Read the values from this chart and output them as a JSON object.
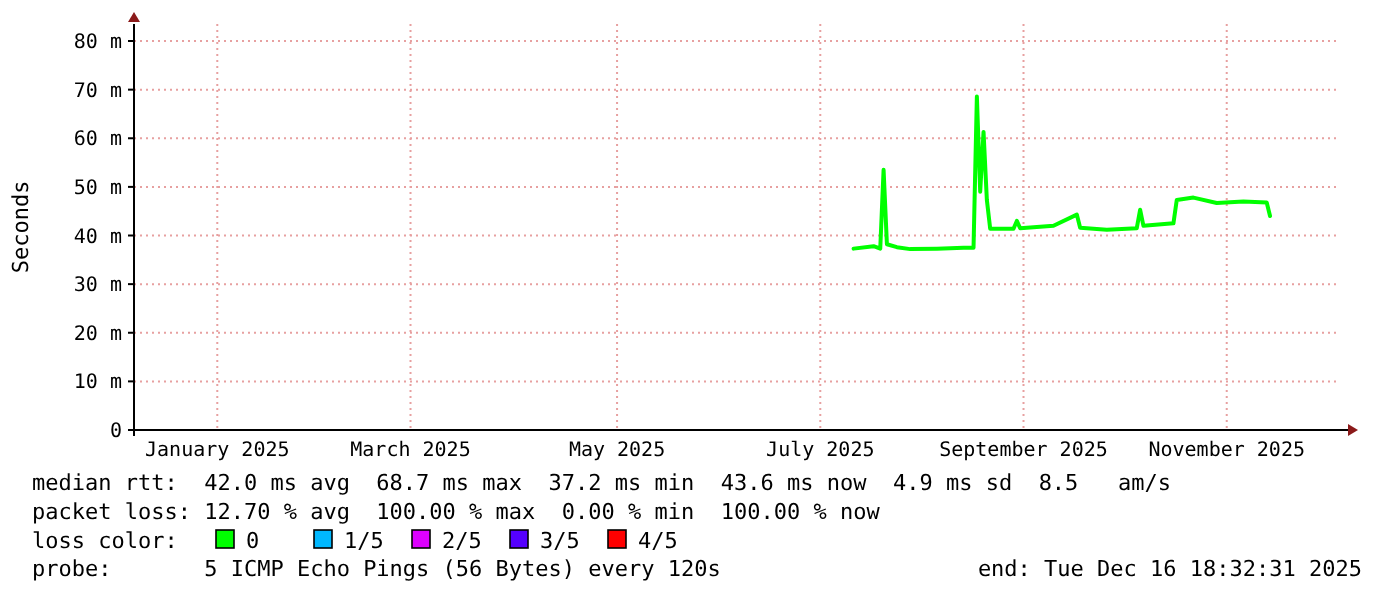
{
  "chart_data": {
    "type": "line",
    "ylabel": "Seconds",
    "legend_title": "loss color:",
    "legend": "bottom",
    "grid": true,
    "marker": "none",
    "line_style": "solid",
    "xlim": [
      "2024-12-22",
      "2025-12-19"
    ],
    "xticks": [
      {
        "value": "2025-01-16",
        "label": "January 2025"
      },
      {
        "value": "2025-03-15",
        "label": "March 2025"
      },
      {
        "value": "2025-05-16",
        "label": "May 2025"
      },
      {
        "value": "2025-07-16",
        "label": "July 2025"
      },
      {
        "value": "2025-09-15",
        "label": "September 2025"
      },
      {
        "value": "2025-11-15",
        "label": "November 2025"
      }
    ],
    "ylim": [
      0,
      83.5
    ],
    "yticks": [
      0,
      {
        "value": 10,
        "label": "10 m"
      },
      {
        "value": 20,
        "label": "20 m"
      },
      {
        "value": 30,
        "label": "30 m"
      },
      {
        "value": 40,
        "label": "40 m"
      },
      {
        "value": 50,
        "label": "50 m"
      },
      {
        "value": 60,
        "label": "60 m"
      },
      {
        "value": 70,
        "label": "70 m"
      },
      {
        "value": 80,
        "label": "80 m"
      }
    ],
    "x": [
      "2025-07-26",
      "2025-08-01",
      "2025-08-03",
      "2025-08-04",
      "2025-08-05",
      "2025-08-08",
      "2025-08-12",
      "2025-08-20",
      "2025-08-28",
      "2025-08-31",
      "2025-09-01",
      "2025-09-02",
      "2025-09-03",
      "2025-09-04",
      "2025-09-05",
      "2025-09-12",
      "2025-09-13",
      "2025-09-14",
      "2025-09-24",
      "2025-10-01",
      "2025-10-02",
      "2025-10-10",
      "2025-10-19",
      "2025-10-20",
      "2025-10-21",
      "2025-10-30",
      "2025-10-31",
      "2025-11-05",
      "2025-11-12",
      "2025-11-20",
      "2025-11-27",
      "2025-11-28"
    ],
    "series": [
      {
        "name": "0",
        "color": "#00ff00",
        "values": [
          37.3,
          37.8,
          37.3,
          53.5,
          38.2,
          37.6,
          37.2,
          37.3,
          37.5,
          37.5,
          68.6,
          49,
          61.3,
          47.3,
          41.4,
          41.4,
          43,
          41.5,
          42,
          44.3,
          41.6,
          41.2,
          41.5,
          45.3,
          42,
          42.5,
          47.3,
          47.8,
          46.7,
          47,
          46.8,
          44.0
        ]
      },
      {
        "name": "1/5",
        "color": "#00b8ff",
        "values": [
          null,
          null,
          null,
          null,
          null,
          null,
          null,
          null,
          null,
          null,
          null,
          null,
          null,
          null,
          null,
          null,
          null,
          null,
          null,
          null,
          null,
          null,
          null,
          null,
          null,
          null,
          null,
          null,
          null,
          null,
          null,
          null
        ]
      },
      {
        "name": "2/5",
        "color": "#dd00ff",
        "values": [
          null,
          null,
          null,
          null,
          null,
          null,
          null,
          null,
          null,
          null,
          null,
          null,
          null,
          null,
          null,
          null,
          null,
          null,
          null,
          null,
          null,
          null,
          null,
          null,
          null,
          null,
          null,
          null,
          null,
          null,
          null,
          null
        ]
      },
      {
        "name": "3/5",
        "color": "#5500ff",
        "values": [
          null,
          null,
          null,
          null,
          null,
          null,
          null,
          null,
          null,
          null,
          null,
          null,
          null,
          null,
          null,
          null,
          null,
          null,
          null,
          null,
          null,
          null,
          null,
          null,
          null,
          null,
          null,
          null,
          null,
          null,
          null,
          null
        ]
      },
      {
        "name": "4/5",
        "color": "#ff0000",
        "values": [
          null,
          null,
          null,
          null,
          null,
          null,
          null,
          null,
          null,
          null,
          null,
          null,
          null,
          null,
          null,
          null,
          null,
          null,
          null,
          null,
          null,
          null,
          null,
          null,
          null,
          null,
          null,
          null,
          null,
          null,
          null,
          null
        ]
      }
    ],
    "annotations": [
      "median rtt:  42.0 ms avg  68.7 ms max  37.2 ms min  43.6 ms now  4.9 ms sd  8.5   am/s",
      "packet loss: 12.70 % avg  100.00 % max  0.00 % min  100.00 % now",
      "probe:       5 ICMP Echo Pings (56 Bytes) every 120s",
      "end: Tue Dec 16 18:32:31 2025"
    ]
  }
}
